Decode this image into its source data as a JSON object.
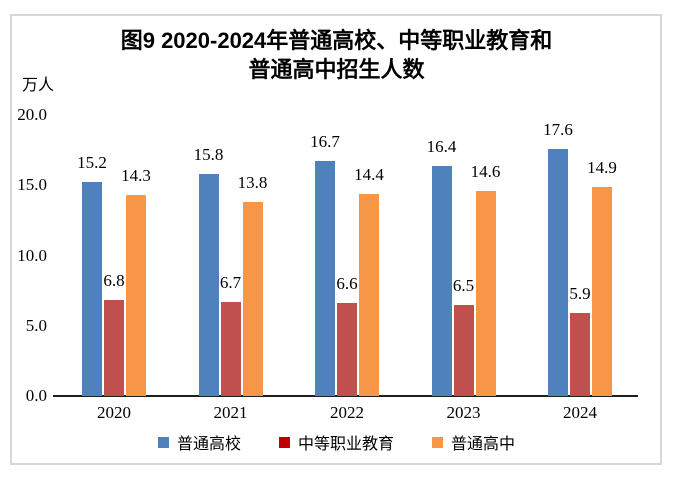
{
  "title": {
    "line1": "图9 2020-2024年普通高校、中等职业教育和",
    "line2": "普通高中招生人数"
  },
  "chart_data": {
    "type": "bar",
    "title": "图9 2020-2024年普通高校、中等职业教育和普通高中招生人数",
    "unit_label": "万人",
    "categories": [
      "2020",
      "2021",
      "2022",
      "2023",
      "2024"
    ],
    "series": [
      {
        "id": "regular-higher-education",
        "name": "普通高校",
        "color": "#4F81BD",
        "legend_color": "#4F81BD",
        "values": [
          15.2,
          15.8,
          16.7,
          16.4,
          17.6
        ]
      },
      {
        "id": "secondary-vocational-education",
        "name": "中等职业教育",
        "color": "#C0504D",
        "legend_color": "#C00000",
        "values": [
          6.8,
          6.7,
          6.6,
          6.5,
          5.9
        ]
      },
      {
        "id": "regular-high-school",
        "name": "普通高中",
        "color": "#F79646",
        "legend_color": "#F79646",
        "values": [
          14.3,
          13.8,
          14.4,
          14.6,
          14.9
        ]
      }
    ],
    "y_axis": {
      "min": 0,
      "max": 20,
      "step": 5,
      "tick_labels": [
        "0.0",
        "5.0",
        "10.0",
        "15.0",
        "20.0"
      ]
    },
    "data_labels": true,
    "grid": false,
    "legend_position": "bottom"
  }
}
